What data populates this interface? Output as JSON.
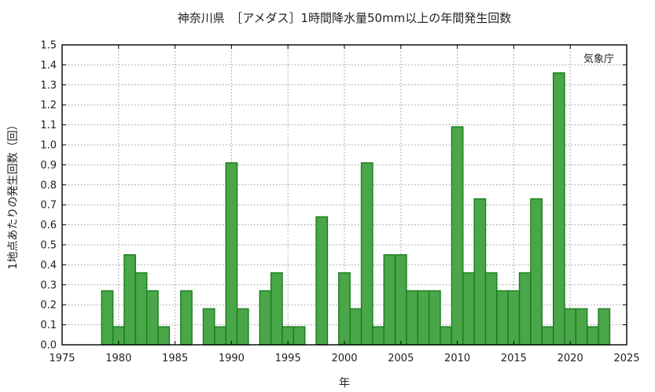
{
  "chart_data": {
    "type": "bar",
    "title": "神奈川県　［アメダス］1時間降水量50mm以上の年間発生回数",
    "annotation": "気象庁",
    "xlabel": "年",
    "ylabel": "1地点あたりの発生回数（回）",
    "xlim": [
      1975,
      2025
    ],
    "ylim": [
      0,
      1.5
    ],
    "x_ticks": [
      "1975",
      "1980",
      "1985",
      "1990",
      "1995",
      "2000",
      "2005",
      "2010",
      "2015",
      "2020",
      "2025"
    ],
    "y_ticks": [
      "0.0",
      "0.1",
      "0.2",
      "0.3",
      "0.4",
      "0.5",
      "0.6",
      "0.7",
      "0.8",
      "0.9",
      "1.0",
      "1.1",
      "1.2",
      "1.3",
      "1.4",
      "1.5"
    ],
    "grid": true,
    "categories": [
      1979,
      1980,
      1981,
      1982,
      1983,
      1984,
      1985,
      1986,
      1987,
      1988,
      1989,
      1990,
      1991,
      1992,
      1993,
      1994,
      1995,
      1996,
      1997,
      1998,
      1999,
      2000,
      2001,
      2002,
      2003,
      2004,
      2005,
      2006,
      2007,
      2008,
      2009,
      2010,
      2011,
      2012,
      2013,
      2014,
      2015,
      2016,
      2017,
      2018,
      2019,
      2020,
      2021,
      2022,
      2023
    ],
    "values": [
      0.27,
      0.09,
      0.45,
      0.36,
      0.27,
      0.09,
      0,
      0.27,
      0,
      0.18,
      0.09,
      0.91,
      0.18,
      0,
      0.27,
      0.36,
      0.09,
      0.09,
      0,
      0.64,
      0,
      0.36,
      0.18,
      0.91,
      0.09,
      0.45,
      0.45,
      0.27,
      0.27,
      0.27,
      0.09,
      1.09,
      0.36,
      0.73,
      0.36,
      0.27,
      0.27,
      0.36,
      0.73,
      0.09,
      1.36,
      0.18,
      0.18,
      0.09,
      0.18
    ],
    "colors": {
      "bar_fill": "#49a649",
      "bar_edge": "#1a7d1a"
    }
  }
}
